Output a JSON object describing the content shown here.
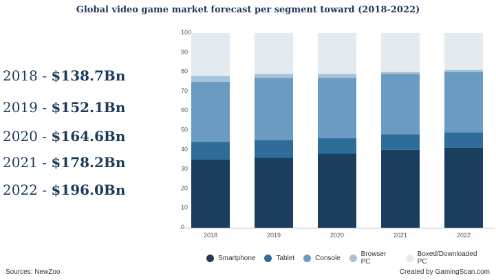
{
  "page": {
    "sources": "Sources: NewZoo",
    "credit": "Created by GamingScan.com"
  },
  "summary": [
    {
      "year": "2018",
      "sep": " - ",
      "value": "$138.7Bn"
    },
    {
      "year": "2019",
      "sep": " - ",
      "value": "$152.1Bn"
    },
    {
      "year": "2020",
      "sep": " - ",
      "value": "$164.6Bn"
    },
    {
      "year": "2021",
      "sep": " - ",
      "value": "$178.2Bn"
    },
    {
      "year": "2022",
      "sep": " - ",
      "value": "$196.0Bn"
    }
  ],
  "chart_data": {
    "type": "bar",
    "stacked": true,
    "title": "Global video game market forecast per segment toward (2018-2022)",
    "xlabel": "",
    "ylabel": "",
    "categories": [
      "2018",
      "2019",
      "2020",
      "2021",
      "2022"
    ],
    "ylim": [
      0,
      100
    ],
    "yticks": [
      0,
      10,
      20,
      30,
      40,
      50,
      60,
      70,
      80,
      90,
      100
    ],
    "grid": false,
    "legend_position": "bottom",
    "series": [
      {
        "name": "Smartphone",
        "color": "#1b3d5e",
        "values": [
          35,
          36,
          38,
          40,
          41
        ]
      },
      {
        "name": "Tablet",
        "color": "#2e6c99",
        "values": [
          9,
          9,
          8,
          8,
          8
        ]
      },
      {
        "name": "Console",
        "color": "#6b9bc0",
        "values": [
          31,
          32,
          31,
          31,
          31
        ]
      },
      {
        "name": "Browser PC",
        "color": "#a7c3da",
        "values": [
          3,
          2,
          2,
          1,
          1
        ]
      },
      {
        "name": "Boxed/Downloaded PC",
        "color": "#e4ebf0",
        "values": [
          22,
          21,
          21,
          20,
          19
        ]
      }
    ]
  }
}
